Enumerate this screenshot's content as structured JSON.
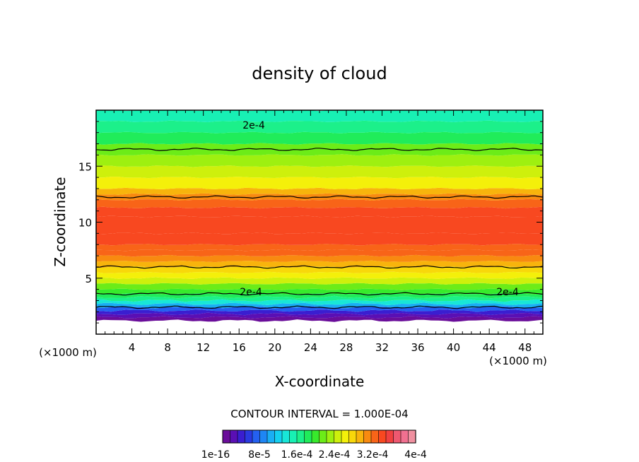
{
  "chart_data": {
    "type": "heatmap",
    "title": "density of cloud",
    "xlabel": "X-coordinate",
    "ylabel": "Z-coordinate",
    "x_unit": "(×1000 m)",
    "y_unit": "(×1000 m)",
    "xlim": [
      0,
      50
    ],
    "ylim": [
      0,
      20
    ],
    "x_ticks": [
      "4",
      "8",
      "12",
      "16",
      "20",
      "24",
      "28",
      "32",
      "36",
      "40",
      "44",
      "48"
    ],
    "y_ticks": [
      "5",
      "10",
      "15"
    ],
    "contour_interval_text": "CONTOUR INTERVAL = 1.000E-04",
    "contour_labels": [
      "2e-4",
      "2e-4",
      "2e-4"
    ],
    "colorbar_labels": [
      "1e-16",
      "8e-5",
      "1.6e-4",
      "2.4e-4",
      "3.2e-4",
      "4e-4"
    ],
    "colorbar_colors": [
      "#6a0d9a",
      "#5a0fb4",
      "#3a1ed0",
      "#2a3ae0",
      "#2460f0",
      "#1e86f4",
      "#1aaef4",
      "#14d0f0",
      "#18e6d8",
      "#18f0b4",
      "#1cf08a",
      "#20ec5a",
      "#38ea2c",
      "#6cec18",
      "#9ef010",
      "#cef00c",
      "#f4f00a",
      "#f8d80a",
      "#f8b40c",
      "#f88a10",
      "#f86418",
      "#f84820",
      "#f04040",
      "#ee5870",
      "#f07090",
      "#f090a0"
    ],
    "profile": {
      "z": [
        0,
        1.2,
        1.5,
        1.8,
        2.1,
        2.4,
        2.7,
        3.0,
        3.3,
        3.6,
        4.0,
        4.5,
        5.0,
        5.5,
        6.0,
        6.5,
        7.0,
        7.5,
        8.0,
        9.0,
        10.5,
        11.3,
        12.0,
        12.5,
        13.0,
        14.0,
        15.0,
        16.0,
        17.0,
        18.0,
        19.0,
        20.0
      ],
      "density": [
        null,
        1e-07,
        2e-05,
        4e-05,
        7e-05,
        0.0001,
        0.00013,
        0.00016,
        0.00018,
        0.0002,
        0.00022,
        0.00024,
        0.00026,
        0.00028,
        0.0003,
        0.00031,
        0.00032,
        0.00033,
        0.00034,
        0.00035,
        0.00035,
        0.00033,
        0.00031,
        0.00029,
        0.00027,
        0.00025,
        0.00023,
        0.00021,
        0.00019,
        0.00017,
        0.00015,
        0.00014
      ]
    },
    "contour_levels": [
      0.0001,
      0.0002,
      0.0003
    ]
  }
}
